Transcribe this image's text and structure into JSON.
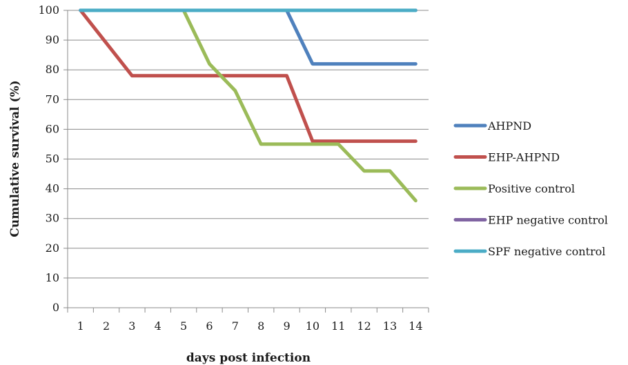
{
  "chart_data": {
    "type": "line",
    "title": "",
    "xlabel": "days post infection",
    "ylabel": "Cumulative survival (%)",
    "x": [
      1,
      2,
      3,
      4,
      5,
      6,
      7,
      8,
      9,
      10,
      11,
      12,
      13,
      14
    ],
    "xlim": [
      0.5,
      14.5
    ],
    "ylim": [
      0,
      100
    ],
    "yticks": [
      0,
      10,
      20,
      30,
      40,
      50,
      60,
      70,
      80,
      90,
      100
    ],
    "grid": "horizontal",
    "legend_position": "right",
    "series": [
      {
        "name": "AHPND",
        "color": "#4f81bd",
        "points": [
          [
            1,
            100
          ],
          [
            9,
            100
          ],
          [
            10,
            82
          ],
          [
            14,
            82
          ]
        ]
      },
      {
        "name": "EHP-AHPND",
        "color": "#c0504d",
        "points": [
          [
            1,
            100
          ],
          [
            3,
            78
          ],
          [
            9,
            78
          ],
          [
            10,
            56
          ],
          [
            14,
            56
          ]
        ]
      },
      {
        "name": "Positive control",
        "color": "#9bbb59",
        "points": [
          [
            5,
            100
          ],
          [
            6,
            82
          ],
          [
            7,
            73
          ],
          [
            8,
            55
          ],
          [
            9,
            55
          ],
          [
            10,
            55
          ],
          [
            11,
            55
          ],
          [
            12,
            46
          ],
          [
            13,
            46
          ],
          [
            14,
            36
          ]
        ]
      },
      {
        "name": "EHP negative control",
        "color": "#8064a2",
        "points": [
          [
            1,
            100
          ],
          [
            14,
            100
          ]
        ]
      },
      {
        "name": "SPF negative control",
        "color": "#4bacc6",
        "points": [
          [
            1,
            100
          ],
          [
            14,
            100
          ]
        ]
      }
    ]
  }
}
